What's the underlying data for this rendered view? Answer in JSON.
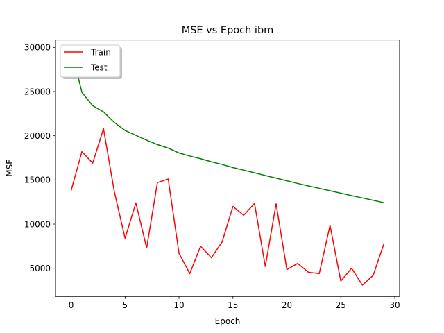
{
  "chart_data": {
    "type": "line",
    "title": "MSE vs Epoch ibm",
    "xlabel": "Epoch",
    "ylabel": "MSE",
    "xlim": [
      -1.45,
      30.45
    ],
    "ylim": [
      1820,
      30840
    ],
    "xticks": [
      0,
      5,
      10,
      15,
      20,
      25,
      30
    ],
    "yticks": [
      5000,
      10000,
      15000,
      20000,
      25000,
      30000
    ],
    "grid": false,
    "legend_position": "upper-left",
    "x": [
      0,
      1,
      2,
      3,
      4,
      5,
      6,
      7,
      8,
      9,
      10,
      11,
      12,
      13,
      14,
      15,
      16,
      17,
      18,
      19,
      20,
      21,
      22,
      23,
      24,
      25,
      26,
      27,
      28,
      29
    ],
    "series": [
      {
        "name": "Train",
        "color": "#ff0000",
        "values": [
          13800,
          18200,
          16900,
          20800,
          13700,
          8400,
          12400,
          7300,
          14700,
          15100,
          6700,
          4400,
          7500,
          6200,
          8000,
          12000,
          11000,
          12350,
          5200,
          12300,
          4850,
          5550,
          4550,
          4400,
          9850,
          3550,
          5000,
          3100,
          4200,
          7800
        ]
      },
      {
        "name": "Test",
        "color": "#008000",
        "values": [
          29900,
          24900,
          23400,
          22700,
          21500,
          20600,
          20050,
          19500,
          19000,
          18600,
          18050,
          17700,
          17400,
          17050,
          16750,
          16400,
          16100,
          15800,
          15500,
          15200,
          14900,
          14600,
          14320,
          14050,
          13770,
          13500,
          13220,
          12960,
          12690,
          12420
        ]
      }
    ]
  }
}
